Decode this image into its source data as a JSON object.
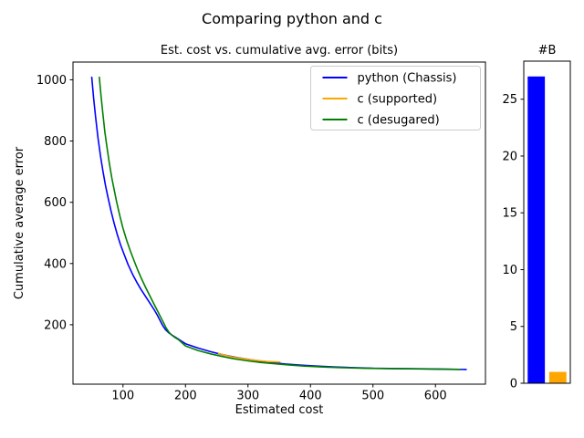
{
  "suptitle": "Comparing python and c",
  "chart_data": [
    {
      "type": "line",
      "title": "Est. cost vs. cumulative avg. error (bits)",
      "xlabel": "Estimated cost",
      "ylabel": "Cumulative average error",
      "xlim": [
        20,
        680
      ],
      "ylim": [
        6,
        1058
      ],
      "xticks": [
        100,
        200,
        300,
        400,
        500,
        600
      ],
      "yticks": [
        200,
        400,
        600,
        800,
        1000
      ],
      "grid": false,
      "legend_position": "upper right",
      "series": [
        {
          "name": "python (Chassis)",
          "color": "#0000ff",
          "points": [
            [
              50,
              1010
            ],
            [
              53,
              940
            ],
            [
              56,
              880
            ],
            [
              60,
              810
            ],
            [
              64,
              752
            ],
            [
              68,
              700
            ],
            [
              72,
              655
            ],
            [
              76,
              615
            ],
            [
              81,
              570
            ],
            [
              86,
              530
            ],
            [
              91,
              494
            ],
            [
              96,
              462
            ],
            [
              101,
              434
            ],
            [
              108,
              397
            ],
            [
              115,
              366
            ],
            [
              122,
              339
            ],
            [
              129,
              315
            ],
            [
              136,
              293
            ],
            [
              143,
              271
            ],
            [
              150,
              249
            ],
            [
              155,
              231
            ],
            [
              160,
              211
            ],
            [
              164,
              196
            ],
            [
              168,
              184
            ],
            [
              173,
              174
            ],
            [
              178,
              167
            ],
            [
              185,
              158
            ],
            [
              200,
              138
            ],
            [
              220,
              124
            ],
            [
              240,
              112
            ],
            [
              260,
              102
            ],
            [
              280,
              94
            ],
            [
              300,
              87
            ],
            [
              320,
              81
            ],
            [
              340,
              76
            ],
            [
              360,
              72
            ],
            [
              385,
              68
            ],
            [
              410,
              65
            ],
            [
              440,
              62
            ],
            [
              470,
              60
            ],
            [
              500,
              58
            ],
            [
              540,
              57
            ],
            [
              580,
              56
            ],
            [
              620,
              55
            ],
            [
              650,
              54
            ]
          ]
        },
        {
          "name": "c (supported)",
          "color": "#ffa500",
          "points": [
            [
              252,
              107
            ],
            [
              262,
              101
            ],
            [
              272,
              96
            ],
            [
              282,
              92
            ],
            [
              292,
              89
            ],
            [
              302,
              86
            ],
            [
              312,
              84
            ],
            [
              322,
              82
            ],
            [
              332,
              80
            ],
            [
              342,
              79
            ],
            [
              352,
              78
            ]
          ]
        },
        {
          "name": "c (desugared)",
          "color": "#008000",
          "points": [
            [
              62,
              1010
            ],
            [
              65,
              945
            ],
            [
              68,
              885
            ],
            [
              71,
              830
            ],
            [
              74,
              785
            ],
            [
              78,
              730
            ],
            [
              82,
              680
            ],
            [
              86,
              640
            ],
            [
              90,
              600
            ],
            [
              95,
              555
            ],
            [
              100,
              515
            ],
            [
              106,
              475
            ],
            [
              112,
              440
            ],
            [
              118,
              408
            ],
            [
              124,
              377
            ],
            [
              130,
              349
            ],
            [
              136,
              323
            ],
            [
              142,
              298
            ],
            [
              148,
              274
            ],
            [
              154,
              250
            ],
            [
              160,
              226
            ],
            [
              165,
              206
            ],
            [
              169,
              190
            ],
            [
              173,
              177
            ],
            [
              177,
              168
            ],
            [
              182,
              160
            ],
            [
              189,
              151
            ],
            [
              200,
              131
            ],
            [
              220,
              116
            ],
            [
              240,
              105
            ],
            [
              260,
              96
            ],
            [
              280,
              88
            ],
            [
              300,
              82
            ],
            [
              320,
              77
            ],
            [
              340,
              73
            ],
            [
              365,
              69
            ],
            [
              390,
              65
            ],
            [
              420,
              62
            ],
            [
              450,
              60
            ],
            [
              485,
              58
            ],
            [
              520,
              57
            ],
            [
              560,
              56
            ],
            [
              600,
              55
            ],
            [
              640,
              54
            ]
          ]
        }
      ]
    },
    {
      "type": "bar",
      "title": "#B",
      "xlim": [
        -0.58,
        1.58
      ],
      "ylim": [
        0,
        28.35
      ],
      "yticks": [
        0,
        5,
        10,
        15,
        20,
        25
      ],
      "bar_width": 0.8,
      "x": [
        0,
        1
      ],
      "bars": [
        {
          "label": "python",
          "value": 27,
          "color": "#0000ff"
        },
        {
          "label": "c",
          "value": 1,
          "color": "#ffa500"
        }
      ]
    }
  ],
  "legend": {
    "entries": [
      "python (Chassis)",
      "c (supported)",
      "c (desugared)"
    ]
  },
  "colors": {
    "python": "#0000ff",
    "c_supported": "#ffa500",
    "c_desugared": "#008000",
    "spine": "#000000",
    "legend_border": "#cccccc"
  }
}
